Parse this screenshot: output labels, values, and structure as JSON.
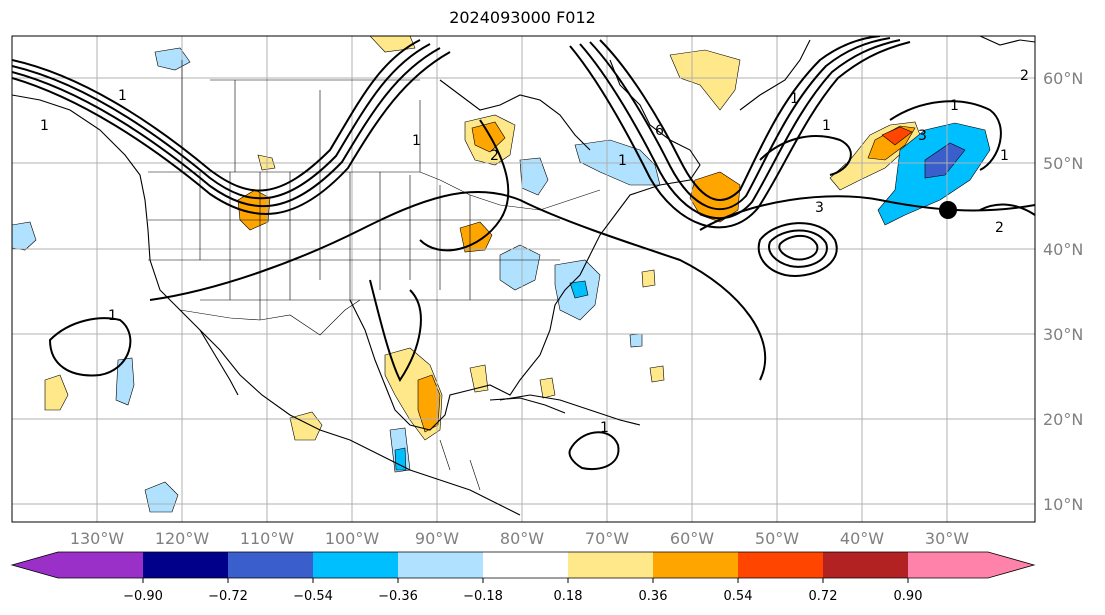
{
  "title": "2024093000 F012",
  "lon_labels": [
    "130°W",
    "120°W",
    "110°W",
    "100°W",
    "90°W",
    "80°W",
    "70°W",
    "60°W",
    "50°W",
    "40°W",
    "30°W"
  ],
  "lat_labels": [
    "60°N",
    "50°N",
    "40°N",
    "30°N",
    "20°N",
    "10°N"
  ],
  "colorbar": {
    "tick_labels": [
      "−0.90",
      "−0.72",
      "−0.54",
      "−0.36",
      "−0.18",
      "0.18",
      "0.36",
      "0.54",
      "0.72",
      "0.90"
    ],
    "colors": [
      "#9a30c8",
      "#00008b",
      "#3a5fcd",
      "#00bfff",
      "#b0e2ff",
      "#ffffff",
      "#ffe88a",
      "#ffa500",
      "#ff4500",
      "#b22222",
      "#ff82ab"
    ]
  },
  "contour_labels": [
    "1",
    "1",
    "1",
    "1",
    "1",
    "1",
    "1",
    "1",
    "1",
    "1",
    "2",
    "2",
    "2",
    "3",
    "3",
    "6"
  ],
  "marker": "storm-center"
}
